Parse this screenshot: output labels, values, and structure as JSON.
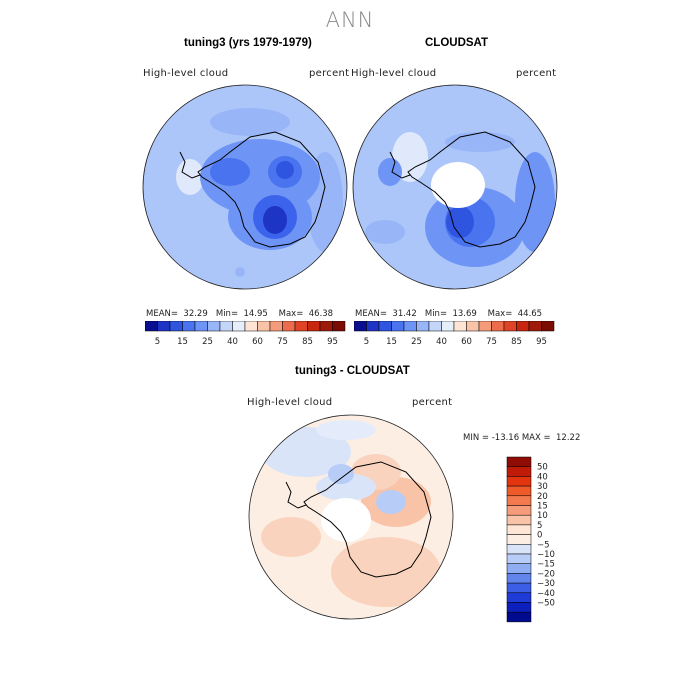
{
  "title": "ANN",
  "panels": [
    {
      "title": "tuning3 (yrs 1979-1979)",
      "variable": "High-level cloud",
      "units": "percent",
      "stats": {
        "mean_label": "MEAN=",
        "mean": "32.29",
        "min_label": "Min=",
        "min": "14.95",
        "max_label": "Max=",
        "max": "46.38"
      }
    },
    {
      "title": "CLOUDSAT",
      "variable": "High-level cloud",
      "units": "percent",
      "stats": {
        "mean_label": "MEAN=",
        "mean": "31.42",
        "min_label": "Min=",
        "min": "13.69",
        "max_label": "Max=",
        "max": "44.65"
      }
    }
  ],
  "top_colorbar": {
    "labels": [
      "5",
      "15",
      "25",
      "40",
      "60",
      "75",
      "85",
      "95"
    ],
    "colors": [
      "#0a0f8f",
      "#1d34c4",
      "#2f55e0",
      "#4a73f0",
      "#6e94f5",
      "#98b5f7",
      "#c3d5f8",
      "#e6eef9",
      "#fde4d4",
      "#f8c3a6",
      "#f39b7b",
      "#ec6c4c",
      "#e04427",
      "#c8260e",
      "#9f1a0a",
      "#7a0c04"
    ]
  },
  "difference": {
    "title": "tuning3 - CLOUDSAT",
    "variable": "High-level cloud",
    "units": "percent",
    "range_text": "MIN = -13.16 MAX =  12.22",
    "colorbar_labels": [
      "50",
      "40",
      "30",
      "20",
      "15",
      "10",
      "5",
      "0",
      "−5",
      "−10",
      "−15",
      "−20",
      "−30",
      "−40",
      "−50"
    ],
    "colorbar_colors": [
      "#8f0d04",
      "#c01a08",
      "#e2340f",
      "#ef5a2a",
      "#f37a4e",
      "#f69c7a",
      "#f9c3a8",
      "#fde6d6",
      "#fdeee4",
      "#d9e4f9",
      "#b7ccf6",
      "#8eadf2",
      "#6185ec",
      "#3c5ee6",
      "#1f3bd8",
      "#0d1fbd",
      "#000a8f"
    ]
  }
}
